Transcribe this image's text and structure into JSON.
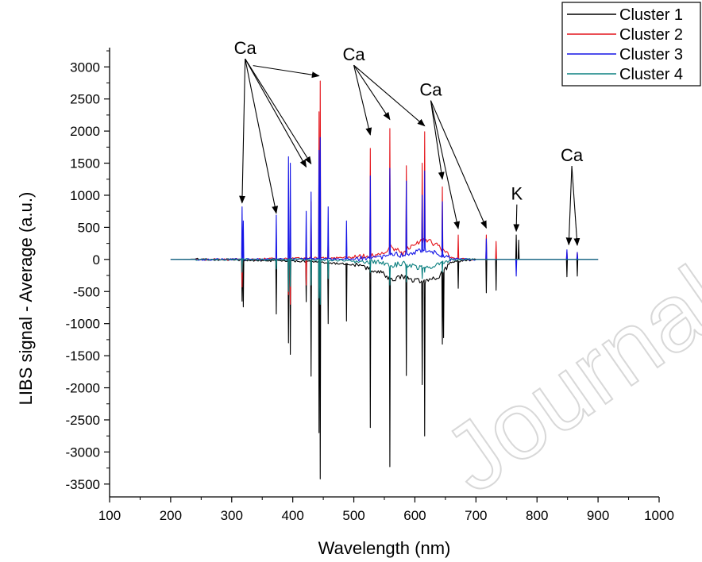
{
  "chart_data": {
    "type": "line",
    "title": "",
    "xlabel": "Wavelength (nm)",
    "ylabel": "LIBS signal - Average (a.u.)",
    "xlim": [
      100,
      1000
    ],
    "ylim": [
      -3700,
      3300
    ],
    "xticks": [
      100,
      200,
      300,
      400,
      500,
      600,
      700,
      800,
      900,
      1000
    ],
    "yticks": [
      -3500,
      -3000,
      -2500,
      -2000,
      -1500,
      -1000,
      -500,
      0,
      500,
      1000,
      1500,
      2000,
      2500,
      3000
    ],
    "grid": false,
    "legend_placement": "top-right",
    "watermark": "Journal Pre-proof",
    "series": [
      {
        "name": "Cluster 1",
        "color": "#000000",
        "baseline": [
          [
            200,
            0
          ],
          [
            240,
            5
          ],
          [
            300,
            -10
          ],
          [
            360,
            -20
          ],
          [
            420,
            -30
          ],
          [
            500,
            -80
          ],
          [
            545,
            -200
          ],
          [
            560,
            -320
          ],
          [
            580,
            -260
          ],
          [
            600,
            -330
          ],
          [
            620,
            -350
          ],
          [
            640,
            -250
          ],
          [
            660,
            -40
          ],
          [
            700,
            0
          ],
          [
            900,
            0
          ]
        ],
        "peaks": [
          [
            317,
            -650
          ],
          [
            319,
            -740
          ],
          [
            373,
            -850
          ],
          [
            393,
            -1300
          ],
          [
            396,
            -1480
          ],
          [
            422,
            -660
          ],
          [
            430,
            -1820
          ],
          [
            443,
            -2700
          ],
          [
            445,
            -3420
          ],
          [
            458,
            -1000
          ],
          [
            488,
            -960
          ],
          [
            527,
            -2620
          ],
          [
            559,
            -3230
          ],
          [
            586,
            -1810
          ],
          [
            612,
            -1950
          ],
          [
            616,
            -2750
          ],
          [
            645,
            -1320
          ],
          [
            647,
            -1220
          ],
          [
            671,
            -450
          ],
          [
            717,
            -520
          ],
          [
            733,
            -480
          ],
          [
            766,
            380
          ],
          [
            770,
            300
          ],
          [
            849,
            -270
          ],
          [
            866,
            -260
          ]
        ]
      },
      {
        "name": "Cluster 2",
        "color": "#e4141b",
        "baseline": [
          [
            200,
            0
          ],
          [
            300,
            0
          ],
          [
            500,
            30
          ],
          [
            545,
            80
          ],
          [
            560,
            200
          ],
          [
            580,
            100
          ],
          [
            600,
            250
          ],
          [
            620,
            300
          ],
          [
            640,
            200
          ],
          [
            660,
            20
          ],
          [
            700,
            0
          ],
          [
            900,
            0
          ]
        ],
        "peaks": [
          [
            317,
            -430
          ],
          [
            393,
            -550
          ],
          [
            396,
            -700
          ],
          [
            422,
            -400
          ],
          [
            430,
            900
          ],
          [
            443,
            2300
          ],
          [
            445,
            2780
          ],
          [
            458,
            330
          ],
          [
            527,
            1730
          ],
          [
            559,
            2040
          ],
          [
            586,
            1460
          ],
          [
            612,
            1500
          ],
          [
            616,
            1990
          ],
          [
            645,
            1130
          ],
          [
            671,
            380
          ],
          [
            717,
            380
          ],
          [
            733,
            280
          ],
          [
            849,
            120
          ],
          [
            866,
            110
          ]
        ]
      },
      {
        "name": "Cluster 3",
        "color": "#1414e6",
        "baseline": [
          [
            200,
            0
          ],
          [
            300,
            0
          ],
          [
            500,
            10
          ],
          [
            545,
            30
          ],
          [
            560,
            100
          ],
          [
            580,
            60
          ],
          [
            600,
            120
          ],
          [
            620,
            150
          ],
          [
            640,
            80
          ],
          [
            660,
            10
          ],
          [
            700,
            0
          ],
          [
            900,
            0
          ]
        ],
        "peaks": [
          [
            317,
            820
          ],
          [
            319,
            600
          ],
          [
            373,
            690
          ],
          [
            393,
            1600
          ],
          [
            396,
            1500
          ],
          [
            422,
            750
          ],
          [
            430,
            1050
          ],
          [
            443,
            1700
          ],
          [
            445,
            1900
          ],
          [
            458,
            820
          ],
          [
            488,
            600
          ],
          [
            527,
            1300
          ],
          [
            559,
            1420
          ],
          [
            586,
            1220
          ],
          [
            612,
            1000
          ],
          [
            616,
            1380
          ],
          [
            645,
            900
          ],
          [
            717,
            320
          ],
          [
            766,
            -260
          ],
          [
            849,
            150
          ],
          [
            866,
            110
          ]
        ]
      },
      {
        "name": "Cluster 4",
        "color": "#0d8080",
        "baseline": [
          [
            200,
            0
          ],
          [
            400,
            0
          ],
          [
            500,
            -20
          ],
          [
            545,
            -50
          ],
          [
            560,
            -100
          ],
          [
            580,
            -60
          ],
          [
            600,
            -120
          ],
          [
            620,
            -130
          ],
          [
            640,
            -80
          ],
          [
            660,
            0
          ],
          [
            900,
            0
          ]
        ],
        "peaks": [
          [
            317,
            -200
          ],
          [
            373,
            -150
          ],
          [
            393,
            -500
          ],
          [
            396,
            -420
          ],
          [
            430,
            -400
          ],
          [
            443,
            -600
          ],
          [
            445,
            -700
          ],
          [
            458,
            -300
          ],
          [
            527,
            -200
          ],
          [
            559,
            -400
          ],
          [
            586,
            -350
          ],
          [
            612,
            -300
          ],
          [
            616,
            -200
          ],
          [
            645,
            -200
          ]
        ]
      }
    ],
    "annotations": [
      {
        "label": "Ca",
        "text_at": [
          322,
          3200
        ],
        "targets": [
          [
            317,
            880
          ],
          [
            373,
            720
          ],
          [
            422,
            1440
          ],
          [
            430,
            1490
          ]
        ]
      },
      {
        "label": "",
        "text_at": [
          335,
          3020
        ],
        "targets": [
          [
            443,
            2860
          ]
        ]
      },
      {
        "label": "Ca",
        "text_at": [
          500,
          3100
        ],
        "targets": [
          [
            527,
            1940
          ],
          [
            559,
            2180
          ],
          [
            616,
            2080
          ]
        ]
      },
      {
        "label": "Ca",
        "text_at": [
          626,
          2550
        ],
        "targets": [
          [
            645,
            1250
          ],
          [
            671,
            480
          ],
          [
            717,
            490
          ]
        ]
      },
      {
        "label": "K",
        "text_at": [
          767,
          930
        ],
        "targets": [
          [
            766,
            440
          ]
        ]
      },
      {
        "label": "Ca",
        "text_at": [
          857,
          1530
        ],
        "targets": [
          [
            852,
            230
          ],
          [
            866,
            220
          ]
        ]
      }
    ]
  }
}
